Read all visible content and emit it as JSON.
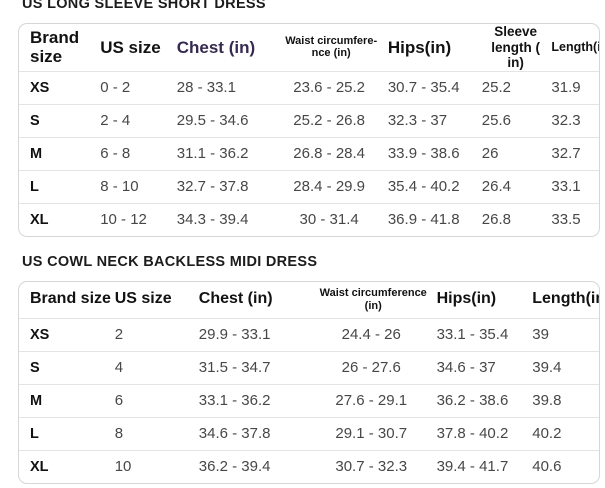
{
  "colors": {
    "highlight_header_text": "#372a50",
    "header_text": "#121212",
    "body_text": "#474747",
    "table_border": "#d6d6d6",
    "row_divider": "#e4e4e4"
  },
  "tables": [
    {
      "title": "US LONG SLEEVE SHORT DRESS",
      "columns": [
        {
          "label_lines": [
            "Brand size"
          ],
          "highlight": false
        },
        {
          "label_lines": [
            "US size"
          ],
          "highlight": false
        },
        {
          "label_lines": [
            "Chest (in)"
          ],
          "highlight": true
        },
        {
          "label_lines": [
            "Waist circumfere-",
            "nce (in)"
          ],
          "highlight": false
        },
        {
          "label_lines": [
            "Hips(in)"
          ],
          "highlight": false
        },
        {
          "label_lines": [
            "Sleeve length (",
            "in)"
          ],
          "highlight": false
        },
        {
          "label_lines": [
            "Length(in)"
          ],
          "highlight": false
        }
      ],
      "rows": [
        [
          "XS",
          "0 - 2",
          "28 - 33.1",
          "23.6 - 25.2",
          "30.7 - 35.4",
          "25.2",
          "31.9"
        ],
        [
          "S",
          "2 - 4",
          "29.5 - 34.6",
          "25.2 - 26.8",
          "32.3 - 37",
          "25.6",
          "32.3"
        ],
        [
          "M",
          "6 - 8",
          "31.1 - 36.2",
          "26.8 - 28.4",
          "33.9 - 38.6",
          "26",
          "32.7"
        ],
        [
          "L",
          "8 - 10",
          "32.7 - 37.8",
          "28.4 - 29.9",
          "35.4 - 40.2",
          "26.4",
          "33.1"
        ],
        [
          "XL",
          "10 - 12",
          "34.3 - 39.4",
          "30 - 31.4",
          "36.9 - 41.8",
          "26.8",
          "33.5"
        ]
      ]
    },
    {
      "title": "US COWL NECK BACKLESS MIDI DRESS",
      "columns": [
        {
          "label_lines": [
            "Brand size"
          ],
          "highlight": false
        },
        {
          "label_lines": [
            "US size"
          ],
          "highlight": false
        },
        {
          "label_lines": [
            "Chest (in)"
          ],
          "highlight": false
        },
        {
          "label_lines": [
            "Waist circumference",
            "(in)"
          ],
          "highlight": false
        },
        {
          "label_lines": [
            "Hips(in)"
          ],
          "highlight": false
        },
        {
          "label_lines": [
            "Length(in)"
          ],
          "highlight": false
        }
      ],
      "rows": [
        [
          "XS",
          "2",
          "29.9 - 33.1",
          "24.4 - 26",
          "33.1 - 35.4",
          "39"
        ],
        [
          "S",
          "4",
          "31.5 - 34.7",
          "26 - 27.6",
          "34.6 - 37",
          "39.4"
        ],
        [
          "M",
          "6",
          "33.1 - 36.2",
          "27.6 - 29.1",
          "36.2 - 38.6",
          "39.8"
        ],
        [
          "L",
          "8",
          "34.6 - 37.8",
          "29.1 - 30.7",
          "37.8 - 40.2",
          "40.2"
        ],
        [
          "XL",
          "10",
          "36.2 - 39.4",
          "30.7 - 32.3",
          "39.4 - 41.7",
          "40.6"
        ]
      ]
    }
  ]
}
